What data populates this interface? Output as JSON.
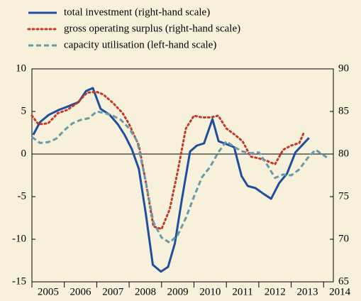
{
  "chart_data": {
    "type": "line",
    "xlim": [
      2005,
      2014.3
    ],
    "xticks": [
      2005,
      2006,
      2007,
      2008,
      2009,
      2010,
      2011,
      2012,
      2013,
      2014
    ],
    "ylim": [
      -15,
      10
    ],
    "yticks": [
      -15,
      -10,
      -5,
      0,
      5,
      10
    ],
    "y2lim": [
      65,
      90
    ],
    "y2ticks": [
      65,
      70,
      75,
      80,
      85,
      90
    ],
    "series": [
      {
        "name": "total investment (right-hand scale)",
        "color": "#1f4e9c",
        "style": "solid",
        "x": [
          2005.04,
          2005.25,
          2005.52,
          2005.84,
          2006.12,
          2006.44,
          2006.67,
          2006.88,
          2007.12,
          2007.4,
          2007.65,
          2007.86,
          2008.08,
          2008.3,
          2008.51,
          2008.73,
          2008.98,
          2009.2,
          2009.41,
          2009.63,
          2009.88,
          2010.09,
          2010.31,
          2010.57,
          2010.76,
          2010.98,
          2011.24,
          2011.47,
          2011.66,
          2011.9,
          2012.12,
          2012.38,
          2012.63,
          2012.87,
          2013.13,
          2013.55
        ],
        "values": [
          2.25,
          3.75,
          4.6,
          5.2,
          5.6,
          6.1,
          7.4,
          7.75,
          5.3,
          4.6,
          3.5,
          2.25,
          0.6,
          -1.75,
          -6.9,
          -13,
          -13.8,
          -13.25,
          -10.5,
          -5.25,
          0.3,
          1.0,
          1.25,
          4.1,
          1.5,
          1.2,
          0.8,
          -2.6,
          -3.75,
          -4.0,
          -4.6,
          -5.25,
          -3.4,
          -2.3,
          0.2,
          1.9
        ]
      },
      {
        "name": "gross operating surplus (right-hand scale)",
        "color": "#c0392b",
        "style": "dotted",
        "x": [
          2005.0,
          2005.2,
          2005.5,
          2005.8,
          2006.1,
          2006.4,
          2006.7,
          2007.0,
          2007.2,
          2007.5,
          2007.8,
          2008.0,
          2008.3,
          2008.5,
          2008.75,
          2009.0,
          2009.25,
          2009.5,
          2009.75,
          2010.0,
          2010.25,
          2010.5,
          2010.75,
          2011.0,
          2011.25,
          2011.5,
          2011.75,
          2012.0,
          2012.25,
          2012.5,
          2012.75,
          2013.0,
          2013.25,
          2013.4
        ],
        "values": [
          4.5,
          3.5,
          3.6,
          4.8,
          5.2,
          6.0,
          7.2,
          7.3,
          7.0,
          6.0,
          4.8,
          3.5,
          1.0,
          -3.0,
          -8.5,
          -8.8,
          -6.5,
          -2.0,
          3.0,
          4.5,
          4.3,
          4.3,
          4.5,
          3.0,
          2.3,
          1.5,
          -0.3,
          -0.5,
          -0.8,
          -1.2,
          0.5,
          1.0,
          1.3,
          2.6
        ]
      },
      {
        "name": "capacity utilisation (left-hand scale)",
        "color": "#6a9aa8",
        "style": "dashed",
        "axis": "y2",
        "x": [
          2005.0,
          2005.25,
          2005.5,
          2005.75,
          2006.0,
          2006.25,
          2006.5,
          2006.75,
          2007.0,
          2007.25,
          2007.5,
          2007.75,
          2008.0,
          2008.25,
          2008.5,
          2008.75,
          2009.0,
          2009.25,
          2009.5,
          2009.75,
          2010.0,
          2010.25,
          2010.5,
          2010.75,
          2011.0,
          2011.25,
          2011.5,
          2011.75,
          2012.0,
          2012.25,
          2012.5,
          2012.75,
          2013.0,
          2013.25,
          2013.5,
          2013.75,
          2014.1
        ],
        "values": [
          82,
          81.3,
          81.4,
          81.8,
          82.8,
          83.6,
          84.0,
          84.2,
          85.0,
          84.8,
          84.5,
          84.0,
          83.0,
          81.5,
          77.0,
          72.0,
          70.2,
          69.6,
          70.5,
          72.5,
          75.0,
          77.3,
          78.5,
          80.2,
          81.5,
          80.8,
          80.3,
          80.1,
          80.2,
          78.8,
          77.2,
          77.6,
          77.5,
          78.2,
          79.5,
          80.5,
          79.6
        ]
      }
    ]
  }
}
